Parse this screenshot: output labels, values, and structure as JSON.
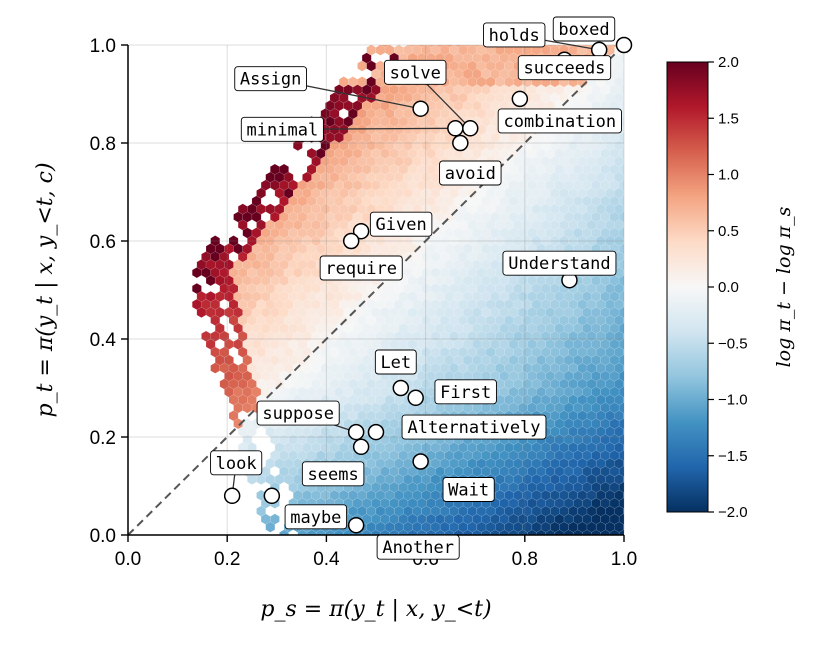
{
  "chart_data": {
    "type": "scatter",
    "background": "hexbin",
    "xlabel": "p_s = π(y_t | x, y_<t)",
    "ylabel": "p_t = π(y_t | x, y_<t, c)",
    "xlim": [
      0.0,
      1.0
    ],
    "ylim": [
      0.0,
      1.0
    ],
    "x_ticks": [
      "0.0",
      "0.2",
      "0.4",
      "0.6",
      "0.8",
      "1.0"
    ],
    "y_ticks": [
      "0.0",
      "0.2",
      "0.4",
      "0.6",
      "0.8",
      "1.0"
    ],
    "grid": true,
    "diagonal": "y = x (dashed)",
    "colorbar": {
      "label": "log π_t − log π_s",
      "range": [
        -2.0,
        2.0
      ],
      "ticks": [
        "2.0",
        "1.5",
        "1.0",
        "0.5",
        "0.0",
        "−0.5",
        "−1.0",
        "−1.5",
        "−2.0"
      ],
      "colormap": "RdBu_r",
      "colors": [
        "#053061",
        "#2166ac",
        "#4393c3",
        "#92c5de",
        "#d1e5f0",
        "#f7f7f7",
        "#fddbc7",
        "#f4a582",
        "#d6604d",
        "#b2182b",
        "#67001f"
      ]
    },
    "points": [
      {
        "token": "holds",
        "x": 0.95,
        "y": 0.99
      },
      {
        "token": "boxed",
        "x": 1.0,
        "y": 1.0
      },
      {
        "token": "succeeds",
        "x": 0.88,
        "y": 0.97
      },
      {
        "token": "combination",
        "x": 0.79,
        "y": 0.89
      },
      {
        "token": "Assign",
        "x": 0.59,
        "y": 0.87
      },
      {
        "token": "solve",
        "x": 0.69,
        "y": 0.83
      },
      {
        "token": "minimal",
        "x": 0.66,
        "y": 0.83
      },
      {
        "token": "avoid",
        "x": 0.67,
        "y": 0.8
      },
      {
        "token": "Given",
        "x": 0.47,
        "y": 0.62
      },
      {
        "token": "require",
        "x": 0.45,
        "y": 0.6
      },
      {
        "token": "Understand",
        "x": 0.89,
        "y": 0.52
      },
      {
        "token": "Let",
        "x": 0.55,
        "y": 0.3
      },
      {
        "token": "First",
        "x": 0.58,
        "y": 0.28
      },
      {
        "token": "suppose",
        "x": 0.46,
        "y": 0.21
      },
      {
        "token": "Alternatively",
        "x": 0.5,
        "y": 0.21
      },
      {
        "token": "seems",
        "x": 0.47,
        "y": 0.18
      },
      {
        "token": "Wait",
        "x": 0.59,
        "y": 0.15
      },
      {
        "token": "look",
        "x": 0.21,
        "y": 0.08
      },
      {
        "token": "maybe",
        "x": 0.29,
        "y": 0.08
      },
      {
        "token": "Another",
        "x": 0.46,
        "y": 0.02
      }
    ]
  }
}
